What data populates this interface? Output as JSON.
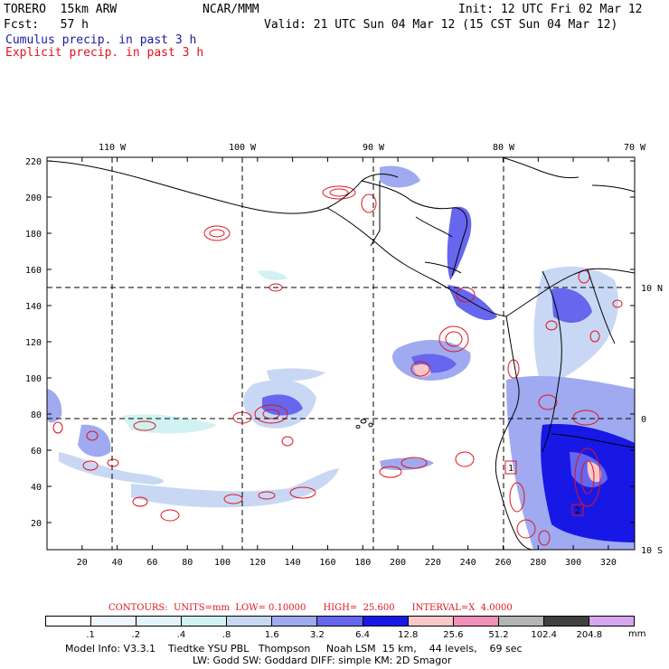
{
  "header": {
    "model": "TORERO  15km ARW",
    "org": "NCAR/MMM",
    "init": "Init: 12 UTC Fri 02 Mar 12",
    "fcst": "Fcst:   57 h",
    "valid": "Valid: 21 UTC Sun 04 Mar 12 (15 CST Sun 04 Mar 12)",
    "field1": "Cumulus precip. in past 3 h",
    "field2": "Explicit precip. in past 3 h",
    "field1_color": "#1a1aa8",
    "field2_color": "#e0141e"
  },
  "map": {
    "lon_labels": [
      "110 W",
      "100 W",
      "90 W",
      "80 W",
      "70 W"
    ],
    "lat_labels": [
      "10 N",
      "0",
      "10 S"
    ],
    "grid_x_labels": [
      "20",
      "40",
      "60",
      "80",
      "100",
      "120",
      "140",
      "160",
      "180",
      "200",
      "220",
      "240",
      "260",
      "280",
      "300",
      "320"
    ],
    "grid_y_labels": [
      "20",
      "40",
      "60",
      "80",
      "100",
      "120",
      "140",
      "160",
      "180",
      "200",
      "220"
    ],
    "grid_x_range": [
      0,
      335
    ],
    "grid_y_range": [
      5,
      222
    ],
    "box_labels": [
      "1",
      "2"
    ]
  },
  "contours_line": "CONTOURS:  UNITS=mm  LOW= 0.10000      HIGH=  25.600      INTERVAL=X  4.0000",
  "legend": {
    "labels": [
      ".1",
      ".2",
      ".4",
      ".8",
      "1.6",
      "3.2",
      "6.4",
      "12.8",
      "25.6",
      "51.2",
      "102.4",
      "204.8"
    ],
    "units": "mm",
    "colors": [
      "#ffffff",
      "#eef6ff",
      "#e3f3fb",
      "#d0f2f2",
      "#c8d8f4",
      "#a0aaf0",
      "#6666ee",
      "#1818e6",
      "#f8c8c8",
      "#f090b8",
      "#b4b4b4",
      "#404040",
      "#d6a6ee"
    ]
  },
  "footer": {
    "line1": "Model Info: V3.3.1    Tiedtke YSU PBL   Thompson     Noah LSM  15 km,    44 levels,    69 sec",
    "line2": "LW: Godd SW: Goddard DIFF: simple KM: 2D Smagor"
  }
}
